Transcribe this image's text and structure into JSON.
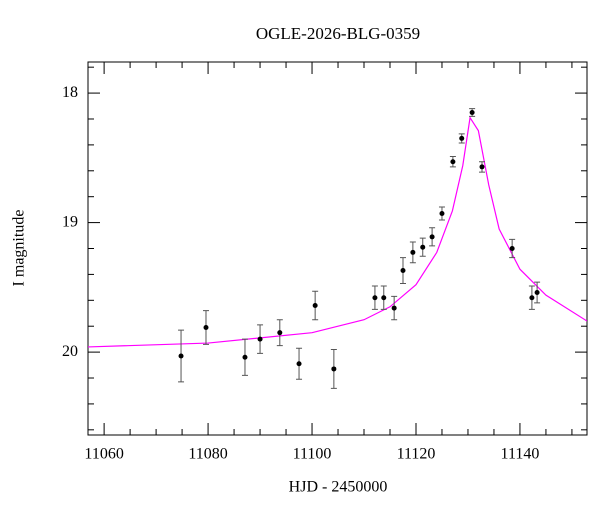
{
  "chart_data": {
    "type": "scatter",
    "title": "OGLE-2026-BLG-0359",
    "x_label": "HJD - 2450000",
    "y_label": "I magnitude",
    "xlim": [
      11056.9,
      11152.9
    ],
    "ylim": [
      20.64,
      17.76
    ],
    "xticks": [
      11060,
      11080,
      11100,
      11120,
      11140
    ],
    "yticks": [
      18,
      19,
      20
    ],
    "xminorticks": [
      11065,
      11070,
      11075,
      11085,
      11090,
      11095,
      11105,
      11110,
      11115,
      11125,
      11130,
      11135,
      11145,
      11150
    ],
    "yminorticks": [
      17.8,
      18.2,
      18.4,
      18.6,
      18.8,
      19.2,
      19.4,
      19.6,
      19.8,
      20.2,
      20.4,
      20.6
    ],
    "series": [
      {
        "type": "line",
        "color": "#ff00ff",
        "x": [
          11056.9,
          11080,
          11100,
          11110,
          11115,
          11120,
          11124,
          11127,
          11129,
          11130.4,
          11132,
          11134,
          11136,
          11140,
          11145,
          11152.9
        ],
        "values": [
          19.96,
          19.93,
          19.85,
          19.75,
          19.65,
          19.48,
          19.23,
          18.91,
          18.56,
          18.19,
          18.29,
          18.71,
          19.05,
          19.36,
          19.56,
          19.76
        ]
      },
      {
        "type": "errorbar",
        "color": "#000000",
        "x": [
          11074.8,
          11079.6,
          11087.1,
          11090.0,
          11093.8,
          11097.5,
          11100.6,
          11104.2,
          11112.1,
          11113.8,
          11115.8,
          11117.5,
          11119.4,
          11121.3,
          11123.1,
          11125.0,
          11127.1,
          11128.8,
          11130.8,
          11132.7,
          11138.5,
          11142.3,
          11143.3
        ],
        "values": [
          20.03,
          19.81,
          20.04,
          19.9,
          19.85,
          20.09,
          19.64,
          20.13,
          19.58,
          19.58,
          19.66,
          19.37,
          19.23,
          19.19,
          19.11,
          18.93,
          18.53,
          18.35,
          18.15,
          18.57,
          19.2,
          19.58,
          19.54
        ],
        "errors": [
          0.2,
          0.13,
          0.14,
          0.11,
          0.1,
          0.12,
          0.11,
          0.15,
          0.09,
          0.09,
          0.09,
          0.1,
          0.08,
          0.07,
          0.07,
          0.05,
          0.04,
          0.035,
          0.03,
          0.04,
          0.07,
          0.09,
          0.08
        ]
      }
    ]
  }
}
